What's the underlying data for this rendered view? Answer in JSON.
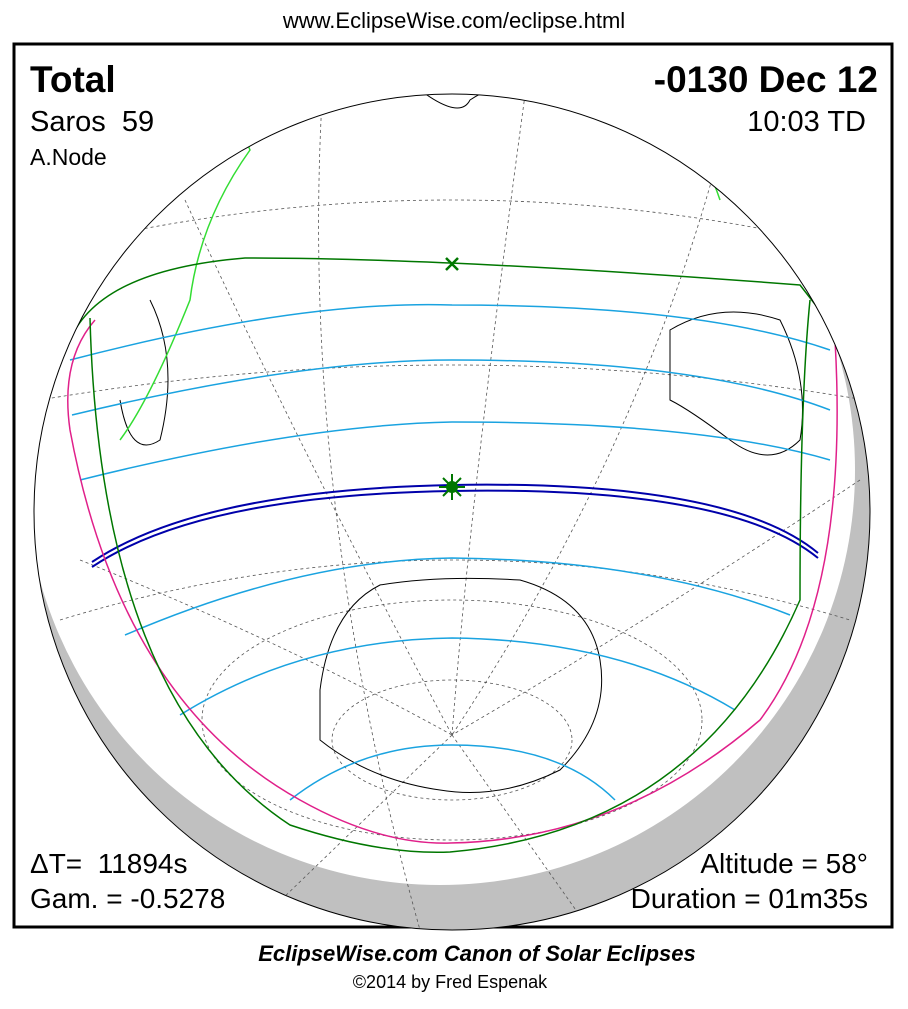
{
  "header": {
    "url": "www.EclipseWise.com/eclipse.html"
  },
  "eclipse": {
    "type": "Total",
    "date": "-0130 Dec 12",
    "saros": "Saros  59",
    "time": "10:03 TD",
    "node": "A.Node",
    "delta_t": "ΔT=  11894s",
    "gamma": "Gam. = -0.5278",
    "altitude": "Altitude = 58°",
    "duration": "Duration = 01m35s"
  },
  "footer": {
    "title": "EclipseWise.com Canon of Solar Eclipses",
    "copyright": "©2014 by Fred Espenak"
  }
}
